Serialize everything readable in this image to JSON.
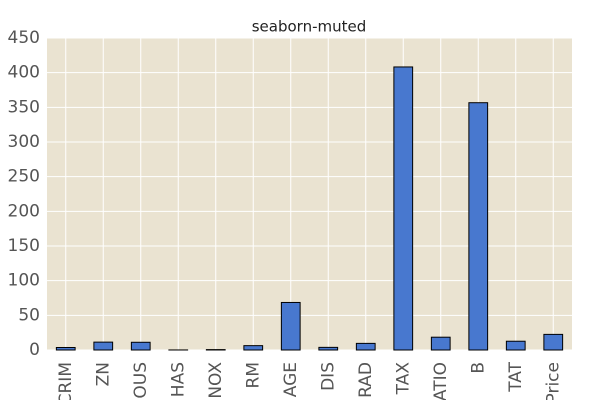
{
  "chart_data": {
    "type": "bar",
    "title": "seaborn-muted",
    "categories": [
      "CRIM",
      "ZN",
      "OUS",
      "HAS",
      "NOX",
      "RM",
      "AGE",
      "DIS",
      "RAD",
      "TAX",
      "ATIO",
      "B",
      "TAT",
      "Price"
    ],
    "values": [
      3.61,
      11.36,
      11.14,
      0.07,
      0.55,
      6.28,
      68.57,
      3.8,
      9.55,
      408.24,
      18.46,
      356.67,
      12.65,
      22.53
    ],
    "color": "#4878cf",
    "ylim": [
      0,
      450
    ],
    "yticks": [
      0,
      50,
      100,
      150,
      200,
      250,
      300,
      350,
      400,
      450
    ],
    "grid": true
  }
}
